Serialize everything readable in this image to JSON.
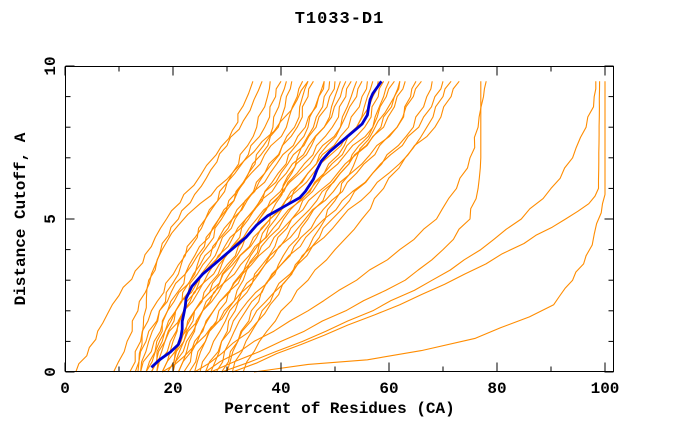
{
  "window": {
    "background": "#ffffff"
  },
  "chart_data": {
    "type": "line",
    "title": "T1033-D1",
    "xlabel": "Percent of Residues (CA)",
    "ylabel": "Distance Cutoff, A",
    "xlim": [
      0,
      100
    ],
    "ylim": [
      0,
      10
    ],
    "x_major_ticks": [
      0,
      20,
      40,
      60,
      80,
      100
    ],
    "x_tick_labels": [
      "0",
      "20",
      "40",
      "60",
      "80",
      "100"
    ],
    "x_minor_ticks": [
      10,
      30,
      50,
      70,
      90
    ],
    "y_major_ticks": [
      0,
      5,
      10
    ],
    "y_tick_labels": [
      "0",
      "5",
      "10"
    ],
    "y_minor_ticks": [
      1,
      2,
      3,
      4,
      6,
      7,
      8,
      9
    ],
    "grid": false,
    "legend": null,
    "axis_color": "#000000",
    "model_color": "#FF8C00",
    "highlight_color": "#0000D0",
    "bundle": {
      "y_anchors": [
        0,
        1,
        2,
        3.5,
        5,
        6.5,
        8,
        9,
        9.5
      ],
      "series_x": [
        [
          12,
          14,
          16,
          21,
          26,
          31.5,
          37,
          39,
          40
        ],
        [
          13,
          15,
          17.5,
          23,
          28.5,
          34.5,
          41,
          43,
          44
        ],
        [
          14,
          15.5,
          17.5,
          21.5,
          26,
          31,
          35.5,
          37.5,
          38
        ],
        [
          14,
          16.5,
          19,
          25,
          31,
          38,
          44.5,
          47,
          48
        ],
        [
          15,
          17,
          19,
          23.5,
          28.5,
          34,
          39.5,
          41,
          42
        ],
        [
          15,
          17.5,
          20.5,
          27,
          33.5,
          41,
          48,
          51,
          52
        ],
        [
          16,
          18,
          20.5,
          25.5,
          31,
          37,
          43,
          45,
          46
        ],
        [
          16,
          18.5,
          22,
          28.5,
          35.5,
          43.5,
          51,
          54,
          55
        ],
        [
          17,
          18.5,
          20.5,
          24.5,
          29,
          34,
          38.5,
          40,
          41
        ],
        [
          17,
          19.5,
          22,
          27.5,
          33.5,
          40,
          46.5,
          49,
          50
        ],
        [
          18,
          21,
          24,
          31,
          38,
          46,
          54,
          57,
          58
        ],
        [
          18,
          20,
          22,
          26.5,
          31.5,
          37,
          42.5,
          44,
          45
        ],
        [
          19,
          21.5,
          24,
          30,
          36,
          43,
          49.5,
          52,
          53
        ],
        [
          19,
          22,
          25.5,
          32.5,
          40,
          48.5,
          57,
          59.5,
          61
        ],
        [
          20,
          22,
          24,
          29,
          34,
          39.5,
          45,
          47,
          48
        ],
        [
          20,
          22.5,
          25.5,
          31.5,
          38,
          45,
          52.5,
          55,
          56
        ],
        [
          21,
          24,
          27.5,
          34.5,
          42,
          50.5,
          59,
          61.5,
          63
        ],
        [
          21,
          23,
          25.5,
          30.5,
          36,
          42,
          48,
          50,
          51
        ],
        [
          22,
          24.5,
          27.5,
          34,
          40.5,
          48,
          55.5,
          58,
          59
        ],
        [
          23,
          26,
          29.5,
          37,
          44.5,
          53,
          61.5,
          64.5,
          66
        ],
        [
          24,
          26,
          28.5,
          33.5,
          39,
          45,
          51,
          53,
          54
        ],
        [
          25,
          27.5,
          30.5,
          37,
          43.5,
          51,
          58.5,
          61,
          62
        ],
        [
          26,
          29,
          32.5,
          40,
          48,
          57,
          65.5,
          68.5,
          70
        ],
        [
          27,
          29,
          31.5,
          36.5,
          42,
          48,
          54,
          56,
          57
        ],
        [
          28,
          30.5,
          33.5,
          40,
          46.5,
          54,
          61.5,
          64,
          65
        ],
        [
          29,
          32,
          35.5,
          43,
          51,
          60,
          68.5,
          71.5,
          73
        ],
        [
          30,
          32,
          34.5,
          39.5,
          45,
          51,
          57,
          59,
          60
        ],
        [
          31,
          33.5,
          36.5,
          43,
          49.5,
          57,
          64.5,
          67,
          68
        ]
      ]
    },
    "extra_series": [
      [
        [
          2,
          0
        ],
        [
          4.5,
          0.8
        ],
        [
          7,
          1.6
        ],
        [
          10,
          2.5
        ],
        [
          13,
          3.3
        ],
        [
          16,
          4.1
        ],
        [
          18.8,
          5
        ],
        [
          22,
          5.8
        ],
        [
          25,
          6.4
        ],
        [
          28,
          7.1
        ],
        [
          31,
          7.9
        ],
        [
          33,
          8.7
        ],
        [
          34,
          9.1
        ],
        [
          34.8,
          9.5
        ]
      ],
      [
        [
          9,
          0
        ],
        [
          11.5,
          1
        ],
        [
          13.5,
          2
        ],
        [
          16,
          3.2
        ],
        [
          18,
          4.2
        ],
        [
          21,
          5
        ],
        [
          24,
          5.8
        ],
        [
          27,
          6.6
        ],
        [
          30,
          7.4
        ],
        [
          33,
          8.2
        ],
        [
          35,
          8.9
        ],
        [
          36.5,
          9.5
        ]
      ],
      [
        [
          18,
          0
        ],
        [
          22,
          0.5
        ],
        [
          26,
          1.2
        ],
        [
          30,
          2
        ],
        [
          33,
          3
        ],
        [
          36,
          4.2
        ],
        [
          39,
          5.5
        ],
        [
          43,
          7
        ],
        [
          46,
          8
        ],
        [
          48,
          9
        ],
        [
          49,
          9.5
        ]
      ],
      [
        [
          24,
          0
        ],
        [
          29,
          0.6
        ],
        [
          34,
          1.3
        ],
        [
          38,
          2.2
        ],
        [
          42,
          3.2
        ],
        [
          46,
          4.4
        ],
        [
          50,
          5.6
        ],
        [
          54,
          7
        ],
        [
          58,
          8.2
        ],
        [
          61,
          9
        ],
        [
          62,
          9.5
        ]
      ],
      [
        [
          13.5,
          0
        ],
        [
          14.5,
          1.5
        ],
        [
          15.5,
          3
        ],
        [
          18,
          4
        ],
        [
          21,
          4.8
        ],
        [
          25,
          5.5
        ],
        [
          30,
          6.3
        ],
        [
          35,
          7.2
        ],
        [
          40,
          8.2
        ],
        [
          43,
          8.9
        ],
        [
          45,
          9.5
        ]
      ],
      [
        [
          33,
          0
        ],
        [
          36,
          1
        ],
        [
          40,
          2
        ],
        [
          45,
          3
        ],
        [
          50,
          4
        ],
        [
          55,
          5
        ],
        [
          59,
          6
        ],
        [
          63,
          7
        ],
        [
          67,
          8
        ],
        [
          70,
          9
        ],
        [
          71.5,
          9.5
        ]
      ],
      [
        [
          26,
          0
        ],
        [
          35,
          1
        ],
        [
          45,
          2
        ],
        [
          54,
          3
        ],
        [
          62,
          4
        ],
        [
          68.8,
          5
        ],
        [
          72.5,
          6
        ],
        [
          75,
          7
        ],
        [
          76.5,
          8
        ],
        [
          77.5,
          9
        ],
        [
          78,
          9.5
        ]
      ],
      [
        [
          27,
          0
        ],
        [
          40,
          1
        ],
        [
          52,
          2
        ],
        [
          63,
          3
        ],
        [
          70,
          4
        ],
        [
          75,
          5
        ],
        [
          76.5,
          6
        ],
        [
          77,
          7
        ],
        [
          77,
          9.5
        ]
      ],
      [
        [
          29,
          0
        ],
        [
          44,
          1
        ],
        [
          57,
          2
        ],
        [
          68,
          3
        ],
        [
          77,
          4
        ],
        [
          84.5,
          5
        ],
        [
          90,
          6
        ],
        [
          94,
          7
        ],
        [
          96.5,
          8
        ],
        [
          98,
          9
        ],
        [
          98.3,
          9.5
        ]
      ],
      [
        [
          31,
          0
        ],
        [
          48,
          1.2
        ],
        [
          62,
          2.2
        ],
        [
          74,
          3.2
        ],
        [
          85,
          4.2
        ],
        [
          92.7,
          5
        ],
        [
          97,
          5.5
        ],
        [
          98.8,
          6
        ],
        [
          99,
          9.5
        ]
      ],
      [
        [
          35,
          0
        ],
        [
          45,
          0.25
        ],
        [
          56,
          0.4
        ],
        [
          66,
          0.7
        ],
        [
          76,
          1.1
        ],
        [
          86,
          1.8
        ],
        [
          90.5,
          2.2
        ],
        [
          94,
          3
        ],
        [
          96.5,
          3.8
        ],
        [
          98,
          4.5
        ],
        [
          99.3,
          5.2
        ],
        [
          100,
          5.8
        ],
        [
          100,
          9.5
        ]
      ]
    ],
    "highlight_series": [
      [
        16,
        0.15
      ],
      [
        17.5,
        0.4
      ],
      [
        19.5,
        0.65
      ],
      [
        21,
        0.9
      ],
      [
        21.7,
        1.4
      ],
      [
        22,
        1.9
      ],
      [
        22.4,
        2.4
      ],
      [
        23.5,
        2.8
      ],
      [
        25.5,
        3.2
      ],
      [
        27.5,
        3.5
      ],
      [
        29.5,
        3.8
      ],
      [
        31.5,
        4.1
      ],
      [
        33.5,
        4.4
      ],
      [
        35.5,
        4.8
      ],
      [
        37.5,
        5.1
      ],
      [
        39.5,
        5.3
      ],
      [
        41.5,
        5.5
      ],
      [
        43.5,
        5.7
      ],
      [
        44.5,
        5.9
      ],
      [
        46,
        6.3
      ],
      [
        47.5,
        6.9
      ],
      [
        49,
        7.2
      ],
      [
        51,
        7.5
      ],
      [
        53,
        7.8
      ],
      [
        55,
        8.1
      ],
      [
        56,
        8.4
      ],
      [
        56.5,
        8.9
      ],
      [
        57,
        9.1
      ],
      [
        58,
        9.35
      ],
      [
        58.6,
        9.5
      ]
    ]
  }
}
